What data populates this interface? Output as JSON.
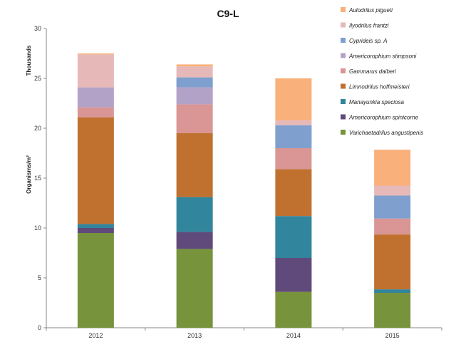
{
  "chart_data": {
    "type": "bar",
    "stacked": true,
    "title": "C9-L",
    "ylabel": "Organisms/m²",
    "units_label": "Thousands",
    "xlabel": "",
    "ylim": [
      0,
      30
    ],
    "yticks": [
      0,
      5,
      10,
      15,
      20,
      25,
      30
    ],
    "grid": false,
    "legend_position": "right",
    "categories": [
      "2012",
      "2013",
      "2014",
      "2015"
    ],
    "series": [
      {
        "name": "Varichaetadrilus  angustipenis",
        "color": "#77933c",
        "values": [
          9.5,
          7.9,
          3.6,
          3.5
        ]
      },
      {
        "name": "Americorophium  spinicorne",
        "color": "#604a7b",
        "values": [
          0.5,
          1.7,
          3.4,
          0.0
        ]
      },
      {
        "name": "Manayunkia  speciosa",
        "color": "#31859c",
        "values": [
          0.4,
          3.5,
          4.2,
          0.35
        ]
      },
      {
        "name": "Limnodrilus  hoffmeisteri",
        "color": "#c0712f",
        "values": [
          10.7,
          6.4,
          4.7,
          5.5
        ]
      },
      {
        "name": "Gammarus  daiberi",
        "color": "#d99694",
        "values": [
          1.0,
          2.9,
          2.1,
          1.6
        ]
      },
      {
        "name": "Americorophium  stimpsoni",
        "color": "#b3a2c7",
        "values": [
          2.0,
          1.7,
          0.0,
          0.0
        ]
      },
      {
        "name": "Cyprideis  sp. A",
        "color": "#7f9fce",
        "values": [
          0.0,
          1.0,
          2.3,
          2.3
        ]
      },
      {
        "name": "Ilyodrilus  frantzi",
        "color": "#e6b9b8",
        "values": [
          3.3,
          1.1,
          0.5,
          1.0
        ]
      },
      {
        "name": "Aulodrilus  pigueti",
        "color": "#fab07a",
        "values": [
          0.1,
          0.2,
          4.2,
          3.6
        ]
      }
    ]
  }
}
